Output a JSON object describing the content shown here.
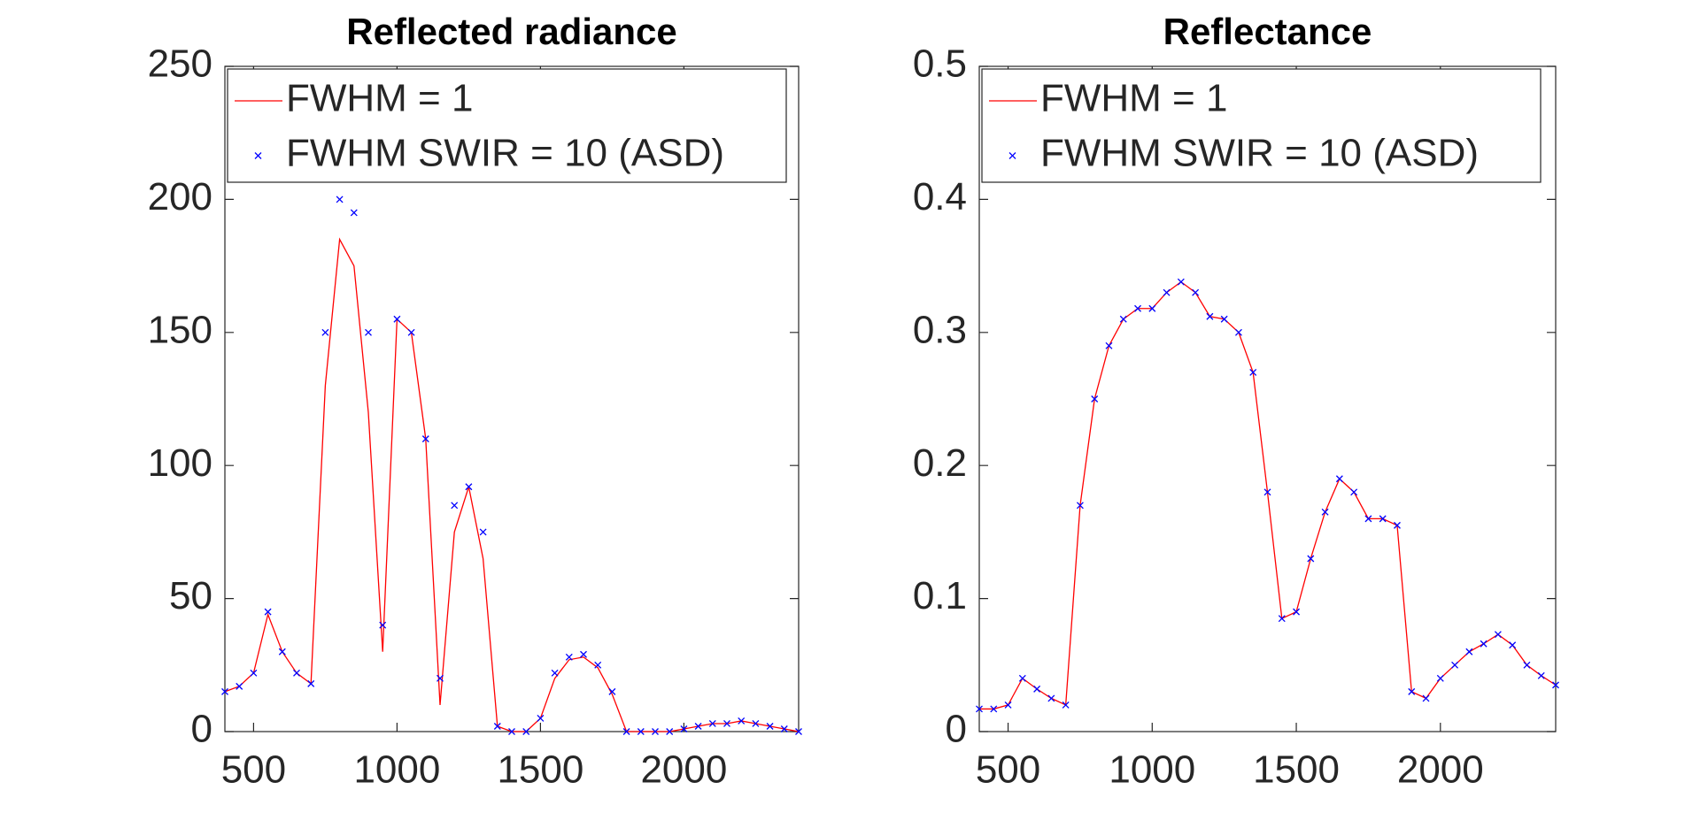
{
  "chart_data": [
    {
      "type": "line",
      "title": "Reflected radiance",
      "x": [
        400,
        450,
        500,
        550,
        600,
        650,
        700,
        750,
        800,
        850,
        900,
        950,
        1000,
        1050,
        1100,
        1150,
        1200,
        1250,
        1300,
        1350,
        1400,
        1450,
        1500,
        1550,
        1600,
        1650,
        1700,
        1750,
        1800,
        1850,
        1900,
        1950,
        2000,
        2050,
        2100,
        2150,
        2200,
        2250,
        2300,
        2350,
        2400
      ],
      "series": [
        {
          "name": "FWHM = 1",
          "color": "#ff0000",
          "style": "line",
          "values": [
            15,
            17,
            22,
            44,
            30,
            22,
            18,
            130,
            185,
            175,
            120,
            30,
            155,
            150,
            110,
            10,
            75,
            92,
            65,
            2,
            0,
            0,
            5,
            20,
            27,
            28,
            24,
            14,
            0,
            0,
            0,
            0,
            1,
            2,
            3,
            3,
            4,
            3,
            2,
            1,
            0
          ]
        },
        {
          "name": "FWHM SWIR = 10 (ASD)",
          "color": "#0000ff",
          "style": "x",
          "values": [
            15,
            17,
            22,
            45,
            30,
            22,
            18,
            150,
            200,
            195,
            150,
            40,
            155,
            150,
            110,
            20,
            85,
            92,
            75,
            2,
            0,
            0,
            5,
            22,
            28,
            29,
            25,
            15,
            0,
            0,
            0,
            0,
            1,
            2,
            3,
            3,
            4,
            3,
            2,
            1,
            0
          ]
        }
      ],
      "xlim": [
        400,
        2400
      ],
      "ylim": [
        0,
        250
      ],
      "xticks": [
        500,
        1000,
        1500,
        2000
      ],
      "yticks": [
        0,
        50,
        100,
        150,
        200,
        250
      ],
      "legend": "northwest"
    },
    {
      "type": "line",
      "title": "Reflectance",
      "x": [
        400,
        450,
        500,
        550,
        600,
        650,
        700,
        750,
        800,
        850,
        900,
        950,
        1000,
        1050,
        1100,
        1150,
        1200,
        1250,
        1300,
        1350,
        1400,
        1450,
        1500,
        1550,
        1600,
        1650,
        1700,
        1750,
        1800,
        1850,
        1900,
        1950,
        2000,
        2050,
        2100,
        2150,
        2200,
        2250,
        2300,
        2350,
        2400
      ],
      "series": [
        {
          "name": "FWHM = 1",
          "color": "#ff0000",
          "style": "line",
          "values": [
            0.017,
            0.017,
            0.02,
            0.04,
            0.032,
            0.025,
            0.02,
            0.17,
            0.25,
            0.29,
            0.31,
            0.318,
            0.318,
            0.33,
            0.338,
            0.33,
            0.312,
            0.31,
            0.3,
            0.27,
            0.18,
            0.085,
            0.09,
            0.13,
            0.165,
            0.19,
            0.18,
            0.16,
            0.16,
            0.155,
            0.03,
            0.025,
            0.04,
            0.05,
            0.06,
            0.066,
            0.073,
            0.065,
            0.05,
            0.042,
            0.035
          ]
        },
        {
          "name": "FWHM SWIR = 10 (ASD)",
          "color": "#0000ff",
          "style": "x",
          "values": [
            0.017,
            0.017,
            0.02,
            0.04,
            0.032,
            0.025,
            0.02,
            0.17,
            0.25,
            0.29,
            0.31,
            0.318,
            0.318,
            0.33,
            0.338,
            0.33,
            0.312,
            0.31,
            0.3,
            0.27,
            0.18,
            0.085,
            0.09,
            0.13,
            0.165,
            0.19,
            0.18,
            0.16,
            0.16,
            0.155,
            0.03,
            0.025,
            0.04,
            0.05,
            0.06,
            0.066,
            0.073,
            0.065,
            0.05,
            0.042,
            0.035
          ]
        }
      ],
      "xlim": [
        400,
        2400
      ],
      "ylim": [
        0,
        0.5
      ],
      "xticks": [
        500,
        1000,
        1500,
        2000
      ],
      "yticks": [
        0,
        0.1,
        0.2,
        0.3,
        0.4,
        0.5
      ],
      "legend": "northwest"
    }
  ]
}
